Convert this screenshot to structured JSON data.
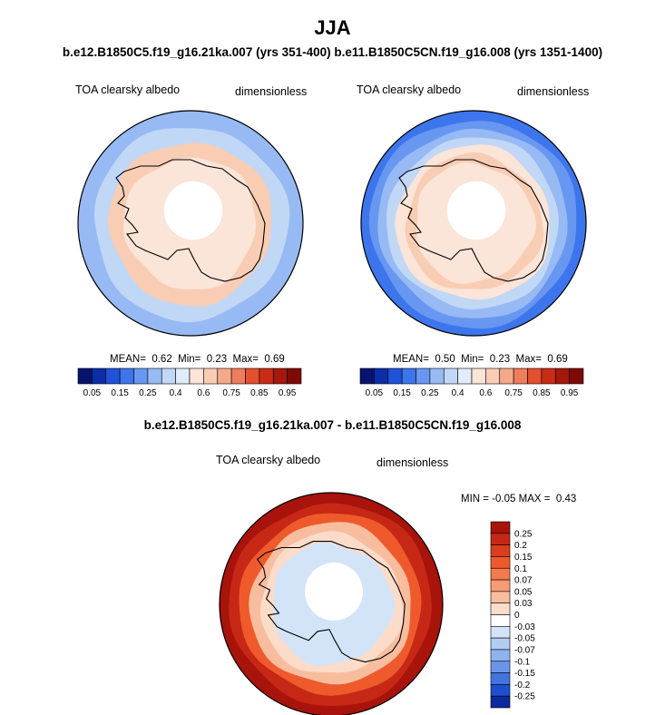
{
  "title": "JJA",
  "subtitle": "b.e12.B1850C5.f19_g16.21ka.007 (yrs 351-400) b.e11.B1850C5CN.f19_g16.008 (yrs 1351-1400)",
  "difference_title": "b.e12.B1850C5.f19_g16.21ka.007 - b.e11.B1850C5CN.f19_g16.008",
  "colors": {
    "land_line": "#000000",
    "map_border": "#000000"
  },
  "chart_data": [
    {
      "type": "heatmap",
      "panel": "left",
      "variable_label": "TOA clearsky albedo",
      "units_label": "dimensionless",
      "projection": "south polar stereographic",
      "stats": {
        "mean_label": "MEAN=",
        "mean": "0.62",
        "min_label": "Min=",
        "min": "0.23",
        "max_label": "Max=",
        "max": "0.69"
      },
      "colorbar": {
        "ticks": [
          "0.05",
          "0.15",
          "0.25",
          "0.4",
          "0.6",
          "0.75",
          "0.85",
          "0.95"
        ],
        "colors": [
          "#08136e",
          "#0b2ea8",
          "#1f52d8",
          "#3d76ec",
          "#6897f2",
          "#97baf4",
          "#c1d7f6",
          "#e1ecfa",
          "#fbe4d8",
          "#f8cdb4",
          "#f4a989",
          "#ee7d5b",
          "#e44f2e",
          "#c92c14",
          "#a5180b",
          "#7e0a05"
        ]
      },
      "field_rings_outer_to_inner": [
        {
          "value": 0.3,
          "color": "#97baf4"
        },
        {
          "value": 0.4,
          "color": "#c1d7f6"
        },
        {
          "value": 0.62,
          "color": "#f8cdb4"
        },
        {
          "value": 0.58,
          "color": "#fbe4d8"
        }
      ]
    },
    {
      "type": "heatmap",
      "panel": "right",
      "variable_label": "TOA clearsky albedo",
      "units_label": "dimensionless",
      "projection": "south polar stereographic",
      "stats": {
        "mean_label": "MEAN=",
        "mean": "0.50",
        "min_label": "Min=",
        "min": "0.23",
        "max_label": "Max=",
        "max": "0.69"
      },
      "colorbar": {
        "ticks": [
          "0.05",
          "0.15",
          "0.25",
          "0.4",
          "0.6",
          "0.75",
          "0.85",
          "0.95"
        ],
        "colors": [
          "#08136e",
          "#0b2ea8",
          "#1f52d8",
          "#3d76ec",
          "#6897f2",
          "#97baf4",
          "#c1d7f6",
          "#e1ecfa",
          "#fbe4d8",
          "#f8cdb4",
          "#f4a989",
          "#ee7d5b",
          "#e44f2e",
          "#c92c14",
          "#a5180b",
          "#7e0a05"
        ]
      },
      "field_rings_outer_to_inner": [
        {
          "value": 0.2,
          "color": "#3d76ec"
        },
        {
          "value": 0.27,
          "color": "#6897f2"
        },
        {
          "value": 0.33,
          "color": "#97baf4"
        },
        {
          "value": 0.42,
          "color": "#c1d7f6"
        },
        {
          "value": 0.55,
          "color": "#fbe4d8"
        },
        {
          "value": 0.62,
          "color": "#f8cdb4"
        },
        {
          "value": 0.58,
          "color": "#fbe4d8"
        }
      ]
    },
    {
      "type": "heatmap",
      "panel": "difference",
      "variable_label": "TOA clearsky albedo",
      "units_label": "dimensionless",
      "projection": "south polar stereographic",
      "stats": {
        "min_label": "MIN =",
        "min": "-0.05",
        "max_label": "MAX =",
        "max": "0.43"
      },
      "colorbar": {
        "ticks": [
          "0.25",
          "0.2",
          "0.15",
          "0.1",
          "0.07",
          "0.05",
          "0.03",
          "0",
          "-0.03",
          "-0.05",
          "-0.07",
          "-0.1",
          "-0.15",
          "-0.2",
          "-0.25"
        ],
        "colors_top_to_bottom": [
          "#a8130b",
          "#c62815",
          "#dd3d1f",
          "#ef5a2c",
          "#f47a4e",
          "#f69b74",
          "#f8bd9f",
          "#fbdcc9",
          "#ffffff",
          "#d3e4f8",
          "#b1cdf3",
          "#8fb3ee",
          "#6b95e8",
          "#4274e0",
          "#1d4fcf",
          "#0b2a9b"
        ]
      },
      "field_rings_outer_to_inner": [
        {
          "value": 0.3,
          "color": "#a8130b"
        },
        {
          "value": 0.2,
          "color": "#c62815"
        },
        {
          "value": 0.12,
          "color": "#ef5a2c"
        },
        {
          "value": 0.06,
          "color": "#f8bd9f"
        },
        {
          "value": 0.02,
          "color": "#fbdcc9"
        },
        {
          "value": -0.02,
          "color": "#d3e4f8"
        }
      ]
    }
  ]
}
